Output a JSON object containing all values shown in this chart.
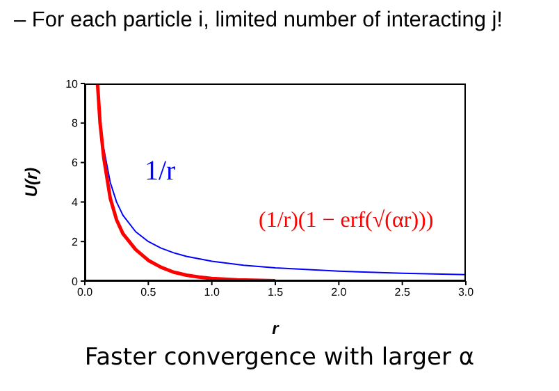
{
  "chart_data": {
    "type": "line",
    "title": "– For each particle i, limited number of interacting j!",
    "xlabel": "r",
    "ylabel": "U(r)",
    "annotations": [
      "1/r",
      "(1/r)(1 − erf(√(αr)))",
      "Faster convergence with larger α"
    ],
    "series": [
      {
        "color": "#0000ff",
        "x": [
          0.15,
          0.2,
          0.25,
          0.3,
          0.4,
          0.5,
          0.6,
          0.7,
          0.8,
          1.0,
          1.25,
          1.5,
          2.0,
          2.5,
          3.0
        ],
        "values": [
          6.67,
          5,
          4,
          3.33,
          2.5,
          2,
          1.67,
          1.43,
          1.25,
          1,
          0.8,
          0.67,
          0.5,
          0.4,
          0.33
        ]
      },
      {
        "color": "#ff0000",
        "x": [
          0.1,
          0.12,
          0.15,
          0.2,
          0.25,
          0.3,
          0.4,
          0.5,
          0.6,
          0.7,
          0.8,
          0.9,
          1.0,
          1.2,
          1.5
        ],
        "values": [
          10,
          8,
          6.2,
          4.2,
          3.1,
          2.4,
          1.6,
          1.05,
          0.7,
          0.45,
          0.3,
          0.2,
          0.13,
          0.06,
          0.02
        ]
      }
    ],
    "xlim": [
      0,
      3
    ],
    "xticks": [
      {
        "value": 0,
        "label": "0.0"
      },
      {
        "value": 0.5,
        "label": "0.5"
      },
      {
        "value": 1,
        "label": "1.0"
      },
      {
        "value": 1.5,
        "label": "1.5"
      },
      {
        "value": 2,
        "label": "2.0"
      },
      {
        "value": 2.5,
        "label": "2.5"
      },
      {
        "value": 3,
        "label": "3.0"
      }
    ],
    "ylim": [
      0,
      10
    ],
    "yticks": [
      0,
      2,
      4,
      6,
      8,
      10
    ],
    "grid": false,
    "legend": false,
    "marker": "none",
    "line_style": "solid"
  }
}
